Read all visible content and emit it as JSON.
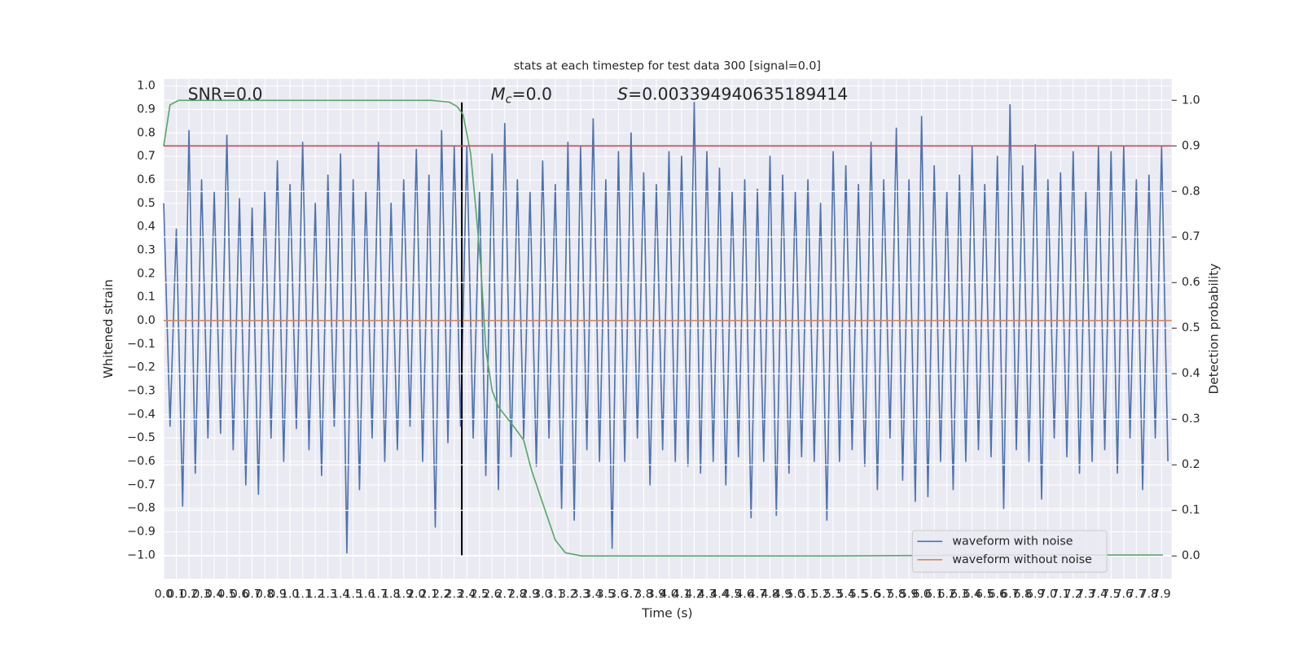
{
  "chart_data": {
    "type": "line",
    "title": "stats at each timestep for test data 300 [signal=0.0]",
    "xlabel": "Time (s)",
    "ylabel": "Whitened strain",
    "y2label": "Detection probability",
    "annotations": {
      "snr": "SNR=0.0",
      "mc": {
        "symbol": "M",
        "subscript": "c",
        "text": "=0.0"
      },
      "s": {
        "symbol": "S",
        "text": "=0.003394940635189414"
      }
    },
    "xlim": [
      0,
      7.98
    ],
    "ylim": [
      -1.1,
      1.03
    ],
    "y2lim": [
      -0.05,
      1.047
    ],
    "grid": true,
    "legend": "lower right",
    "xticks": [
      {
        "value": 0,
        "label": "0.0"
      },
      0.1,
      0.2,
      0.3,
      0.4,
      0.5,
      0.6,
      0.7,
      0.8,
      0.9,
      {
        "value": 1,
        "label": "1.0"
      },
      1.1,
      1.2,
      1.3,
      1.4,
      1.5,
      1.6,
      1.7,
      1.8,
      1.9,
      {
        "value": 2,
        "label": "2.0"
      },
      2.1,
      2.2,
      2.3,
      2.4,
      2.5,
      2.6,
      2.7,
      2.8,
      2.9,
      {
        "value": 3,
        "label": "3.0"
      },
      3.1,
      3.2,
      3.3,
      3.4,
      3.5,
      3.6,
      3.7,
      3.8,
      3.9,
      {
        "value": 4,
        "label": "4.0"
      },
      4.1,
      4.2,
      4.3,
      4.4,
      4.5,
      4.6,
      4.7,
      4.8,
      4.9,
      {
        "value": 5,
        "label": "5.0"
      },
      5.1,
      5.2,
      5.3,
      5.4,
      5.5,
      5.6,
      5.7,
      5.8,
      5.9,
      {
        "value": 6,
        "label": "6.0"
      },
      6.1,
      6.2,
      6.3,
      6.4,
      6.5,
      6.6,
      6.7,
      6.8,
      6.9,
      {
        "value": 7,
        "label": "7.0"
      },
      7.1,
      7.2,
      7.3,
      7.4,
      7.5,
      7.6,
      7.7,
      7.8,
      7.9
    ],
    "yticks": [
      {
        "value": -1,
        "label": "−1.0"
      },
      {
        "value": -0.9,
        "label": "−0.9"
      },
      {
        "value": -0.8,
        "label": "−0.8"
      },
      {
        "value": -0.7,
        "label": "−0.7"
      },
      {
        "value": -0.6,
        "label": "−0.6"
      },
      {
        "value": -0.5,
        "label": "−0.5"
      },
      {
        "value": -0.4,
        "label": "−0.4"
      },
      {
        "value": -0.3,
        "label": "−0.3"
      },
      {
        "value": -0.2,
        "label": "−0.2"
      },
      {
        "value": -0.1,
        "label": "−0.1"
      },
      {
        "value": 0,
        "label": "0.0"
      },
      0.1,
      0.2,
      0.3,
      0.4,
      0.5,
      0.6,
      0.7,
      0.8,
      0.9,
      {
        "value": 1,
        "label": "1.0"
      }
    ],
    "y2ticks": [
      {
        "value": 0,
        "label": "0.0"
      },
      0.1,
      0.2,
      0.3,
      0.4,
      0.5,
      0.6,
      0.7,
      0.8,
      0.9,
      {
        "value": 1,
        "label": "1.0"
      }
    ],
    "series": [
      {
        "name": "waveform with noise",
        "color": "#4c72b0",
        "x": [
          0,
          0.05,
          0.1,
          0.15,
          0.2,
          0.25,
          0.3,
          0.35,
          0.4,
          0.45,
          0.5,
          0.55,
          0.6,
          0.65,
          0.7,
          0.75,
          0.8,
          0.85,
          0.9,
          0.95,
          1,
          1.05,
          1.1,
          1.15,
          1.2,
          1.25,
          1.3,
          1.35,
          1.4,
          1.45,
          1.5,
          1.55,
          1.6,
          1.65,
          1.7,
          1.75,
          1.8,
          1.85,
          1.9,
          1.95,
          2,
          2.05,
          2.1,
          2.15,
          2.2,
          2.25,
          2.3,
          2.35,
          2.4,
          2.45,
          2.5,
          2.55,
          2.6,
          2.65,
          2.7,
          2.75,
          2.8,
          2.85,
          2.9,
          2.95,
          3,
          3.05,
          3.1,
          3.15,
          3.2,
          3.25,
          3.3,
          3.35,
          3.4,
          3.45,
          3.5,
          3.55,
          3.6,
          3.65,
          3.7,
          3.75,
          3.8,
          3.85,
          3.9,
          3.95,
          4,
          4.05,
          4.1,
          4.15,
          4.2,
          4.25,
          4.3,
          4.35,
          4.4,
          4.45,
          4.5,
          4.55,
          4.6,
          4.65,
          4.7,
          4.75,
          4.8,
          4.85,
          4.9,
          4.95,
          5,
          5.05,
          5.1,
          5.15,
          5.2,
          5.25,
          5.3,
          5.35,
          5.4,
          5.45,
          5.5,
          5.55,
          5.6,
          5.65,
          5.7,
          5.75,
          5.8,
          5.85,
          5.9,
          5.95,
          6,
          6.05,
          6.1,
          6.15,
          6.2,
          6.25,
          6.3,
          6.35,
          6.4,
          6.45,
          6.5,
          6.55,
          6.6,
          6.65,
          6.7,
          6.75,
          6.8,
          6.85,
          6.9,
          6.95,
          7,
          7.05,
          7.1,
          7.15,
          7.2,
          7.25,
          7.3,
          7.35,
          7.4,
          7.45,
          7.5,
          7.55,
          7.6,
          7.65,
          7.7,
          7.75,
          7.8,
          7.85,
          7.9,
          7.95
        ],
        "values": [
          0.5,
          -0.45,
          0.39,
          -0.79,
          0.81,
          -0.65,
          0.6,
          -0.5,
          0.55,
          -0.48,
          0.79,
          -0.55,
          0.52,
          -0.7,
          0.48,
          -0.74,
          0.55,
          -0.5,
          0.68,
          -0.6,
          0.58,
          -0.46,
          0.76,
          -0.55,
          0.5,
          -0.66,
          0.62,
          -0.45,
          0.71,
          -0.99,
          0.6,
          -0.72,
          0.55,
          -0.5,
          0.76,
          -0.6,
          0.5,
          -0.55,
          0.6,
          -0.45,
          0.73,
          -0.6,
          0.62,
          -0.88,
          0.81,
          -0.52,
          0.74,
          -0.45,
          0.74,
          -0.5,
          0.55,
          -0.66,
          0.71,
          -0.72,
          0.84,
          -0.58,
          0.6,
          -0.5,
          0.55,
          -0.62,
          0.68,
          -0.5,
          0.58,
          -0.8,
          0.76,
          -0.85,
          0.74,
          -0.55,
          0.86,
          -0.6,
          0.6,
          -0.97,
          0.72,
          -0.6,
          0.8,
          -0.5,
          0.63,
          -0.7,
          0.58,
          -0.55,
          0.72,
          -0.6,
          0.7,
          -0.62,
          0.93,
          -0.65,
          0.72,
          -0.6,
          0.65,
          -0.7,
          0.55,
          -0.58,
          0.6,
          -0.84,
          0.56,
          -0.6,
          0.7,
          -0.83,
          0.62,
          -0.65,
          0.55,
          -0.58,
          0.6,
          -0.6,
          0.5,
          -0.85,
          0.72,
          -0.6,
          0.66,
          -0.55,
          0.58,
          -0.62,
          0.76,
          -0.72,
          0.6,
          -0.5,
          0.82,
          -0.68,
          0.6,
          -0.77,
          0.87,
          -0.75,
          0.66,
          -0.6,
          0.55,
          -0.72,
          0.62,
          -0.6,
          0.74,
          -0.55,
          0.58,
          -0.58,
          0.7,
          -0.8,
          0.92,
          -0.55,
          0.66,
          -0.6,
          0.75,
          -0.76,
          0.6,
          -0.5,
          0.63,
          -0.58,
          0.72,
          -0.65,
          0.55,
          -0.6,
          0.74,
          -0.55,
          0.72,
          -0.65,
          0.74,
          -0.5,
          0.6,
          -0.72,
          0.62,
          -0.5,
          0.74,
          -0.6
        ]
      },
      {
        "name": "waveform without noise",
        "color": "#dd8452",
        "x": [
          0,
          7.98
        ],
        "values": [
          0,
          0
        ]
      },
      {
        "color": "#55a868",
        "axis": "y2",
        "x": [
          0,
          0.05,
          0.12,
          2.12,
          2.26,
          2.32,
          2.37,
          2.43,
          2.47,
          2.51,
          2.55,
          2.6,
          2.65,
          2.78,
          2.85,
          2.91,
          3.01,
          3.1,
          3.18,
          3.31,
          5.28,
          6.6,
          7.91
        ],
        "values": [
          0.9,
          0.99,
          1,
          1,
          0.996,
          0.987,
          0.969,
          0.883,
          0.765,
          0.637,
          0.454,
          0.363,
          0.327,
          0.281,
          0.254,
          0.19,
          0.108,
          0.035,
          0.007,
          0,
          0,
          0.002,
          0.002
        ]
      }
    ],
    "hlines": [
      {
        "axis": "y2",
        "value": 0.9,
        "color": "#c44e52"
      }
    ],
    "vlines": [
      {
        "value": 2.36,
        "y": [
          -1,
          0.93
        ],
        "color": "#000000"
      }
    ]
  }
}
